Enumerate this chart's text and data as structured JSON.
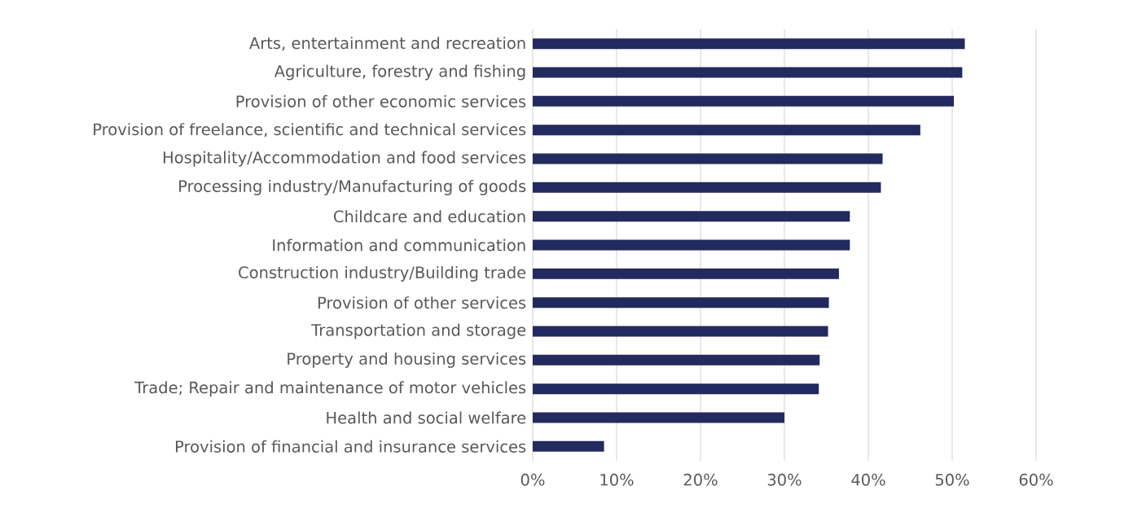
{
  "chart_data": {
    "type": "bar",
    "orientation": "horizontal",
    "categories": [
      "Arts, entertainment and recreation",
      "Agriculture, forestry and fishing",
      "Provision of other economic services",
      "Provision of freelance, scientific and technical services",
      "Hospitality/Accommodation and food services",
      "Processing industry/Manufacturing of goods",
      "Childcare and education",
      "Information and communication",
      "Construction industry/Building trade",
      "Provision of other services",
      "Transportation and storage",
      "Property and housing services",
      "Trade; Repair and maintenance of motor vehicles",
      "Health and social welfare",
      "Provision of financial and insurance services"
    ],
    "values": [
      51.5,
      51.2,
      50.2,
      46.2,
      41.7,
      41.5,
      37.8,
      37.8,
      36.5,
      35.3,
      35.2,
      34.2,
      34.1,
      30.0,
      8.5
    ],
    "color": "#222a5e",
    "xlim": [
      0,
      60
    ],
    "xticks": [
      {
        "value": 0,
        "label": "0%"
      },
      {
        "value": 10,
        "label": "10%"
      },
      {
        "value": 20,
        "label": "20%"
      },
      {
        "value": 30,
        "label": "30%"
      },
      {
        "value": 40,
        "label": "40%"
      },
      {
        "value": 50,
        "label": "50%"
      },
      {
        "value": 60,
        "label": "60%"
      }
    ],
    "grid": "x"
  }
}
